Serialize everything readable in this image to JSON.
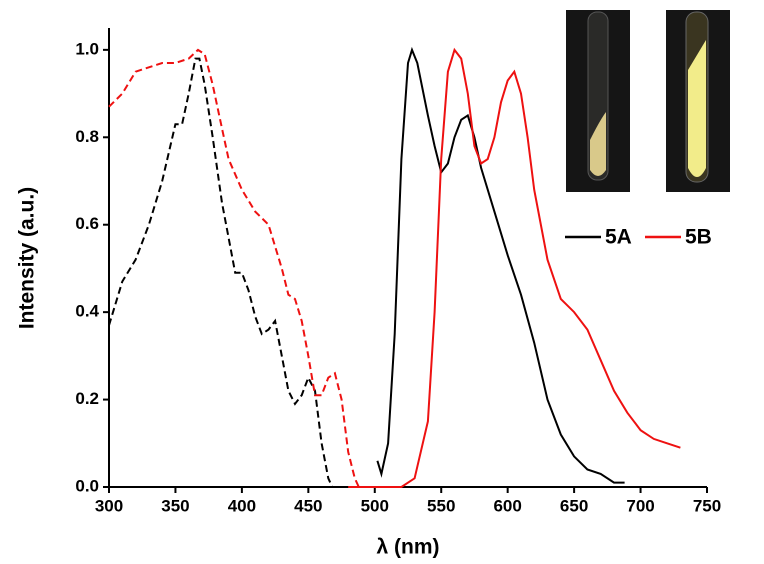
{
  "chart_data": {
    "type": "line",
    "ylabel": "Intensity (a.u.)",
    "xlabel": "λ (nm)",
    "xlim": [
      300,
      750
    ],
    "ylim": [
      0,
      1.05
    ],
    "xticks": [
      300,
      350,
      400,
      450,
      500,
      550,
      600,
      650,
      700,
      750
    ],
    "yticks": [
      {
        "value": 0,
        "label": "0.0"
      },
      0.2,
      0.4,
      0.6,
      0.8,
      {
        "value": 1,
        "label": "1.0"
      }
    ],
    "series": [
      {
        "color": "#000000",
        "dashed": true,
        "x": [
          300,
          310,
          320,
          330,
          340,
          350,
          355,
          360,
          365,
          368,
          372,
          378,
          385,
          390,
          395,
          400,
          405,
          410,
          415,
          420,
          425,
          430,
          435,
          440,
          445,
          450,
          455,
          460,
          465,
          468
        ],
        "values": [
          0.37,
          0.47,
          0.52,
          0.6,
          0.7,
          0.83,
          0.83,
          0.9,
          0.98,
          0.98,
          0.92,
          0.8,
          0.65,
          0.57,
          0.49,
          0.49,
          0.45,
          0.39,
          0.35,
          0.36,
          0.38,
          0.3,
          0.22,
          0.19,
          0.21,
          0.25,
          0.22,
          0.1,
          0.02,
          0
        ]
      },
      {
        "color": "#ee1111",
        "dashed": true,
        "x": [
          300,
          310,
          320,
          330,
          340,
          350,
          360,
          367,
          372,
          378,
          385,
          390,
          400,
          410,
          420,
          430,
          435,
          440,
          445,
          450,
          455,
          460,
          465,
          470,
          475,
          480,
          485,
          488
        ],
        "values": [
          0.87,
          0.9,
          0.95,
          0.96,
          0.97,
          0.97,
          0.98,
          1.0,
          0.99,
          0.92,
          0.82,
          0.75,
          0.68,
          0.63,
          0.6,
          0.5,
          0.44,
          0.43,
          0.38,
          0.3,
          0.21,
          0.21,
          0.25,
          0.26,
          0.2,
          0.08,
          0.02,
          0
        ]
      },
      {
        "name": "5A",
        "color": "#000000",
        "dashed": false,
        "x": [
          502,
          505,
          510,
          515,
          520,
          525,
          528,
          532,
          540,
          545,
          550,
          555,
          560,
          565,
          570,
          575,
          580,
          590,
          600,
          610,
          620,
          630,
          640,
          650,
          660,
          670,
          680,
          688
        ],
        "values": [
          0.06,
          0.03,
          0.1,
          0.35,
          0.75,
          0.97,
          1.0,
          0.97,
          0.85,
          0.78,
          0.72,
          0.74,
          0.8,
          0.84,
          0.85,
          0.8,
          0.73,
          0.63,
          0.53,
          0.44,
          0.33,
          0.2,
          0.12,
          0.07,
          0.04,
          0.03,
          0.01,
          0.01
        ]
      },
      {
        "name": "5B",
        "color": "#ee1111",
        "dashed": false,
        "x": [
          480,
          520,
          530,
          540,
          545,
          550,
          555,
          560,
          565,
          570,
          575,
          580,
          585,
          590,
          595,
          600,
          605,
          610,
          615,
          620,
          630,
          640,
          650,
          660,
          670,
          680,
          690,
          700,
          710,
          720,
          730
        ],
        "values": [
          0,
          0,
          0.02,
          0.15,
          0.4,
          0.75,
          0.95,
          1.0,
          0.98,
          0.9,
          0.78,
          0.74,
          0.75,
          0.8,
          0.88,
          0.93,
          0.95,
          0.9,
          0.8,
          0.68,
          0.52,
          0.43,
          0.4,
          0.36,
          0.29,
          0.22,
          0.17,
          0.13,
          0.11,
          0.1,
          0.09
        ]
      }
    ]
  }
}
